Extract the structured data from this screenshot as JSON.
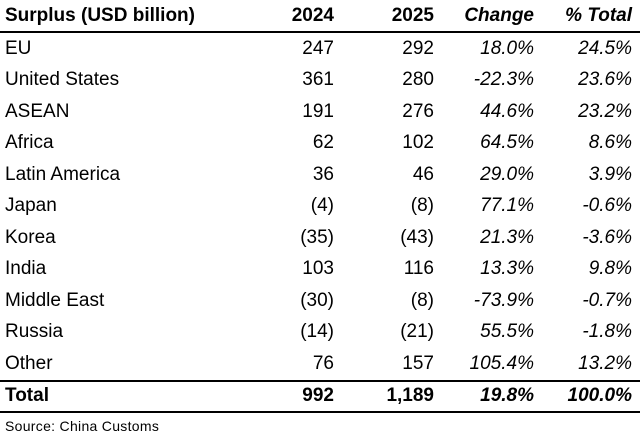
{
  "table": {
    "headers": {
      "name": "Surplus (USD billion)",
      "y2024": "2024",
      "y2025": "2025",
      "change": "Change",
      "pct_total": "% Total"
    },
    "rows": [
      {
        "name": "EU",
        "y2024": "247",
        "y2025": "292",
        "change": "18.0%",
        "pct_total": "24.5%"
      },
      {
        "name": "United States",
        "y2024": "361",
        "y2025": "280",
        "change": "-22.3%",
        "pct_total": "23.6%"
      },
      {
        "name": "ASEAN",
        "y2024": "191",
        "y2025": "276",
        "change": "44.6%",
        "pct_total": "23.2%"
      },
      {
        "name": "Africa",
        "y2024": "62",
        "y2025": "102",
        "change": "64.5%",
        "pct_total": "8.6%"
      },
      {
        "name": "Latin America",
        "y2024": "36",
        "y2025": "46",
        "change": "29.0%",
        "pct_total": "3.9%"
      },
      {
        "name": "Japan",
        "y2024": "(4)",
        "y2025": "(8)",
        "change": "77.1%",
        "pct_total": "-0.6%"
      },
      {
        "name": "Korea",
        "y2024": "(35)",
        "y2025": "(43)",
        "change": "21.3%",
        "pct_total": "-3.6%"
      },
      {
        "name": "India",
        "y2024": "103",
        "y2025": "116",
        "change": "13.3%",
        "pct_total": "9.8%"
      },
      {
        "name": "Middle East",
        "y2024": "(30)",
        "y2025": "(8)",
        "change": "-73.9%",
        "pct_total": "-0.7%"
      },
      {
        "name": "Russia",
        "y2024": "(14)",
        "y2025": "(21)",
        "change": "55.5%",
        "pct_total": "-1.8%"
      },
      {
        "name": "Other",
        "y2024": "76",
        "y2025": "157",
        "change": "105.4%",
        "pct_total": "13.2%"
      }
    ],
    "total": {
      "name": "Total",
      "y2024": "992",
      "y2025": "1,189",
      "change": "19.8%",
      "pct_total": "100.0%"
    }
  },
  "source": "Source: China Customs"
}
